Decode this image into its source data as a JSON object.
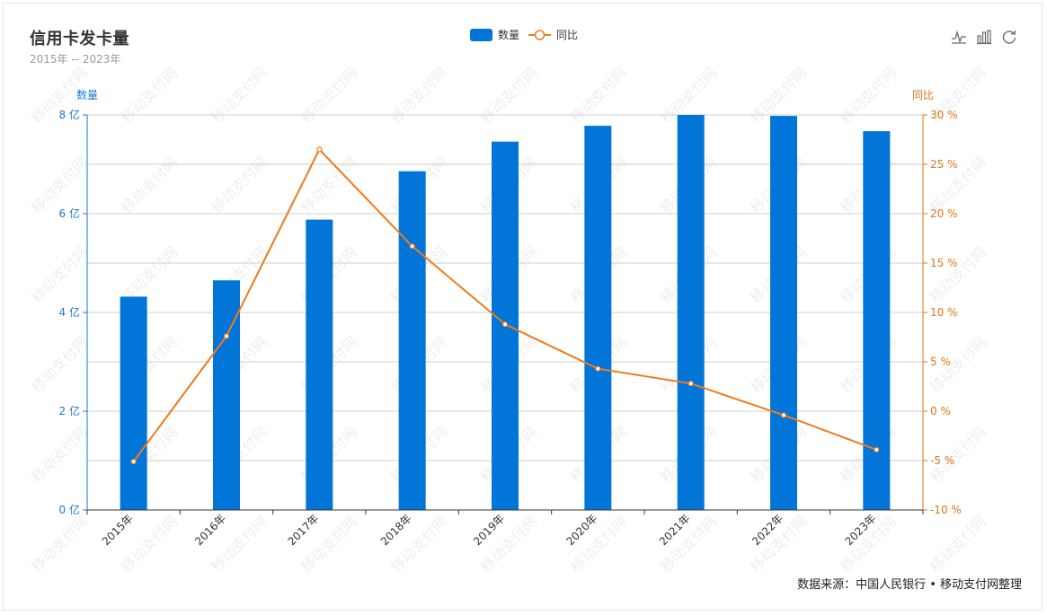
{
  "title": "信用卡发卡量",
  "subtitle": "2015年 -- 2023年",
  "source": "数据来源：中国人民银行 • 移动支付网整理",
  "watermark": "移动支付网",
  "toolbox": [
    "line-chart-icon",
    "bar-chart-icon",
    "restore-icon"
  ],
  "colors": {
    "bar": "#0275d8",
    "line": "#f07a1a",
    "left_axis": "#1a7ad3",
    "right_axis": "#e0761a"
  },
  "chart_data": {
    "type": "bar",
    "categories": [
      "2015年",
      "2016年",
      "2017年",
      "2018年",
      "2019年",
      "2020年",
      "2021年",
      "2022年",
      "2023年"
    ],
    "series": [
      {
        "name": "数量",
        "type": "bar",
        "axis": "left",
        "values": [
          4.32,
          4.65,
          5.88,
          6.86,
          7.46,
          7.78,
          8.0,
          7.98,
          7.67
        ]
      },
      {
        "name": "同比",
        "type": "line",
        "axis": "right",
        "values": [
          -5.1,
          7.6,
          26.5,
          16.7,
          8.8,
          4.3,
          2.8,
          -0.4,
          -3.9
        ]
      }
    ],
    "y_left": {
      "label": "数量",
      "unit": "亿",
      "ylim": [
        0,
        8
      ],
      "ticks": [
        0,
        2,
        4,
        6,
        8
      ],
      "tick_labels": [
        "0 亿",
        "2 亿",
        "4 亿",
        "6 亿",
        "8 亿"
      ]
    },
    "y_right": {
      "label": "同比",
      "unit": "%",
      "ylim": [
        -10,
        30
      ],
      "ticks": [
        -10,
        -5,
        0,
        5,
        10,
        15,
        20,
        25,
        30
      ],
      "tick_labels": [
        "-10 %",
        "-5 %",
        "0 %",
        "5 %",
        "10 %",
        "15 %",
        "20 %",
        "25 %",
        "30 %"
      ]
    },
    "grid": true,
    "legend": "top-center"
  }
}
